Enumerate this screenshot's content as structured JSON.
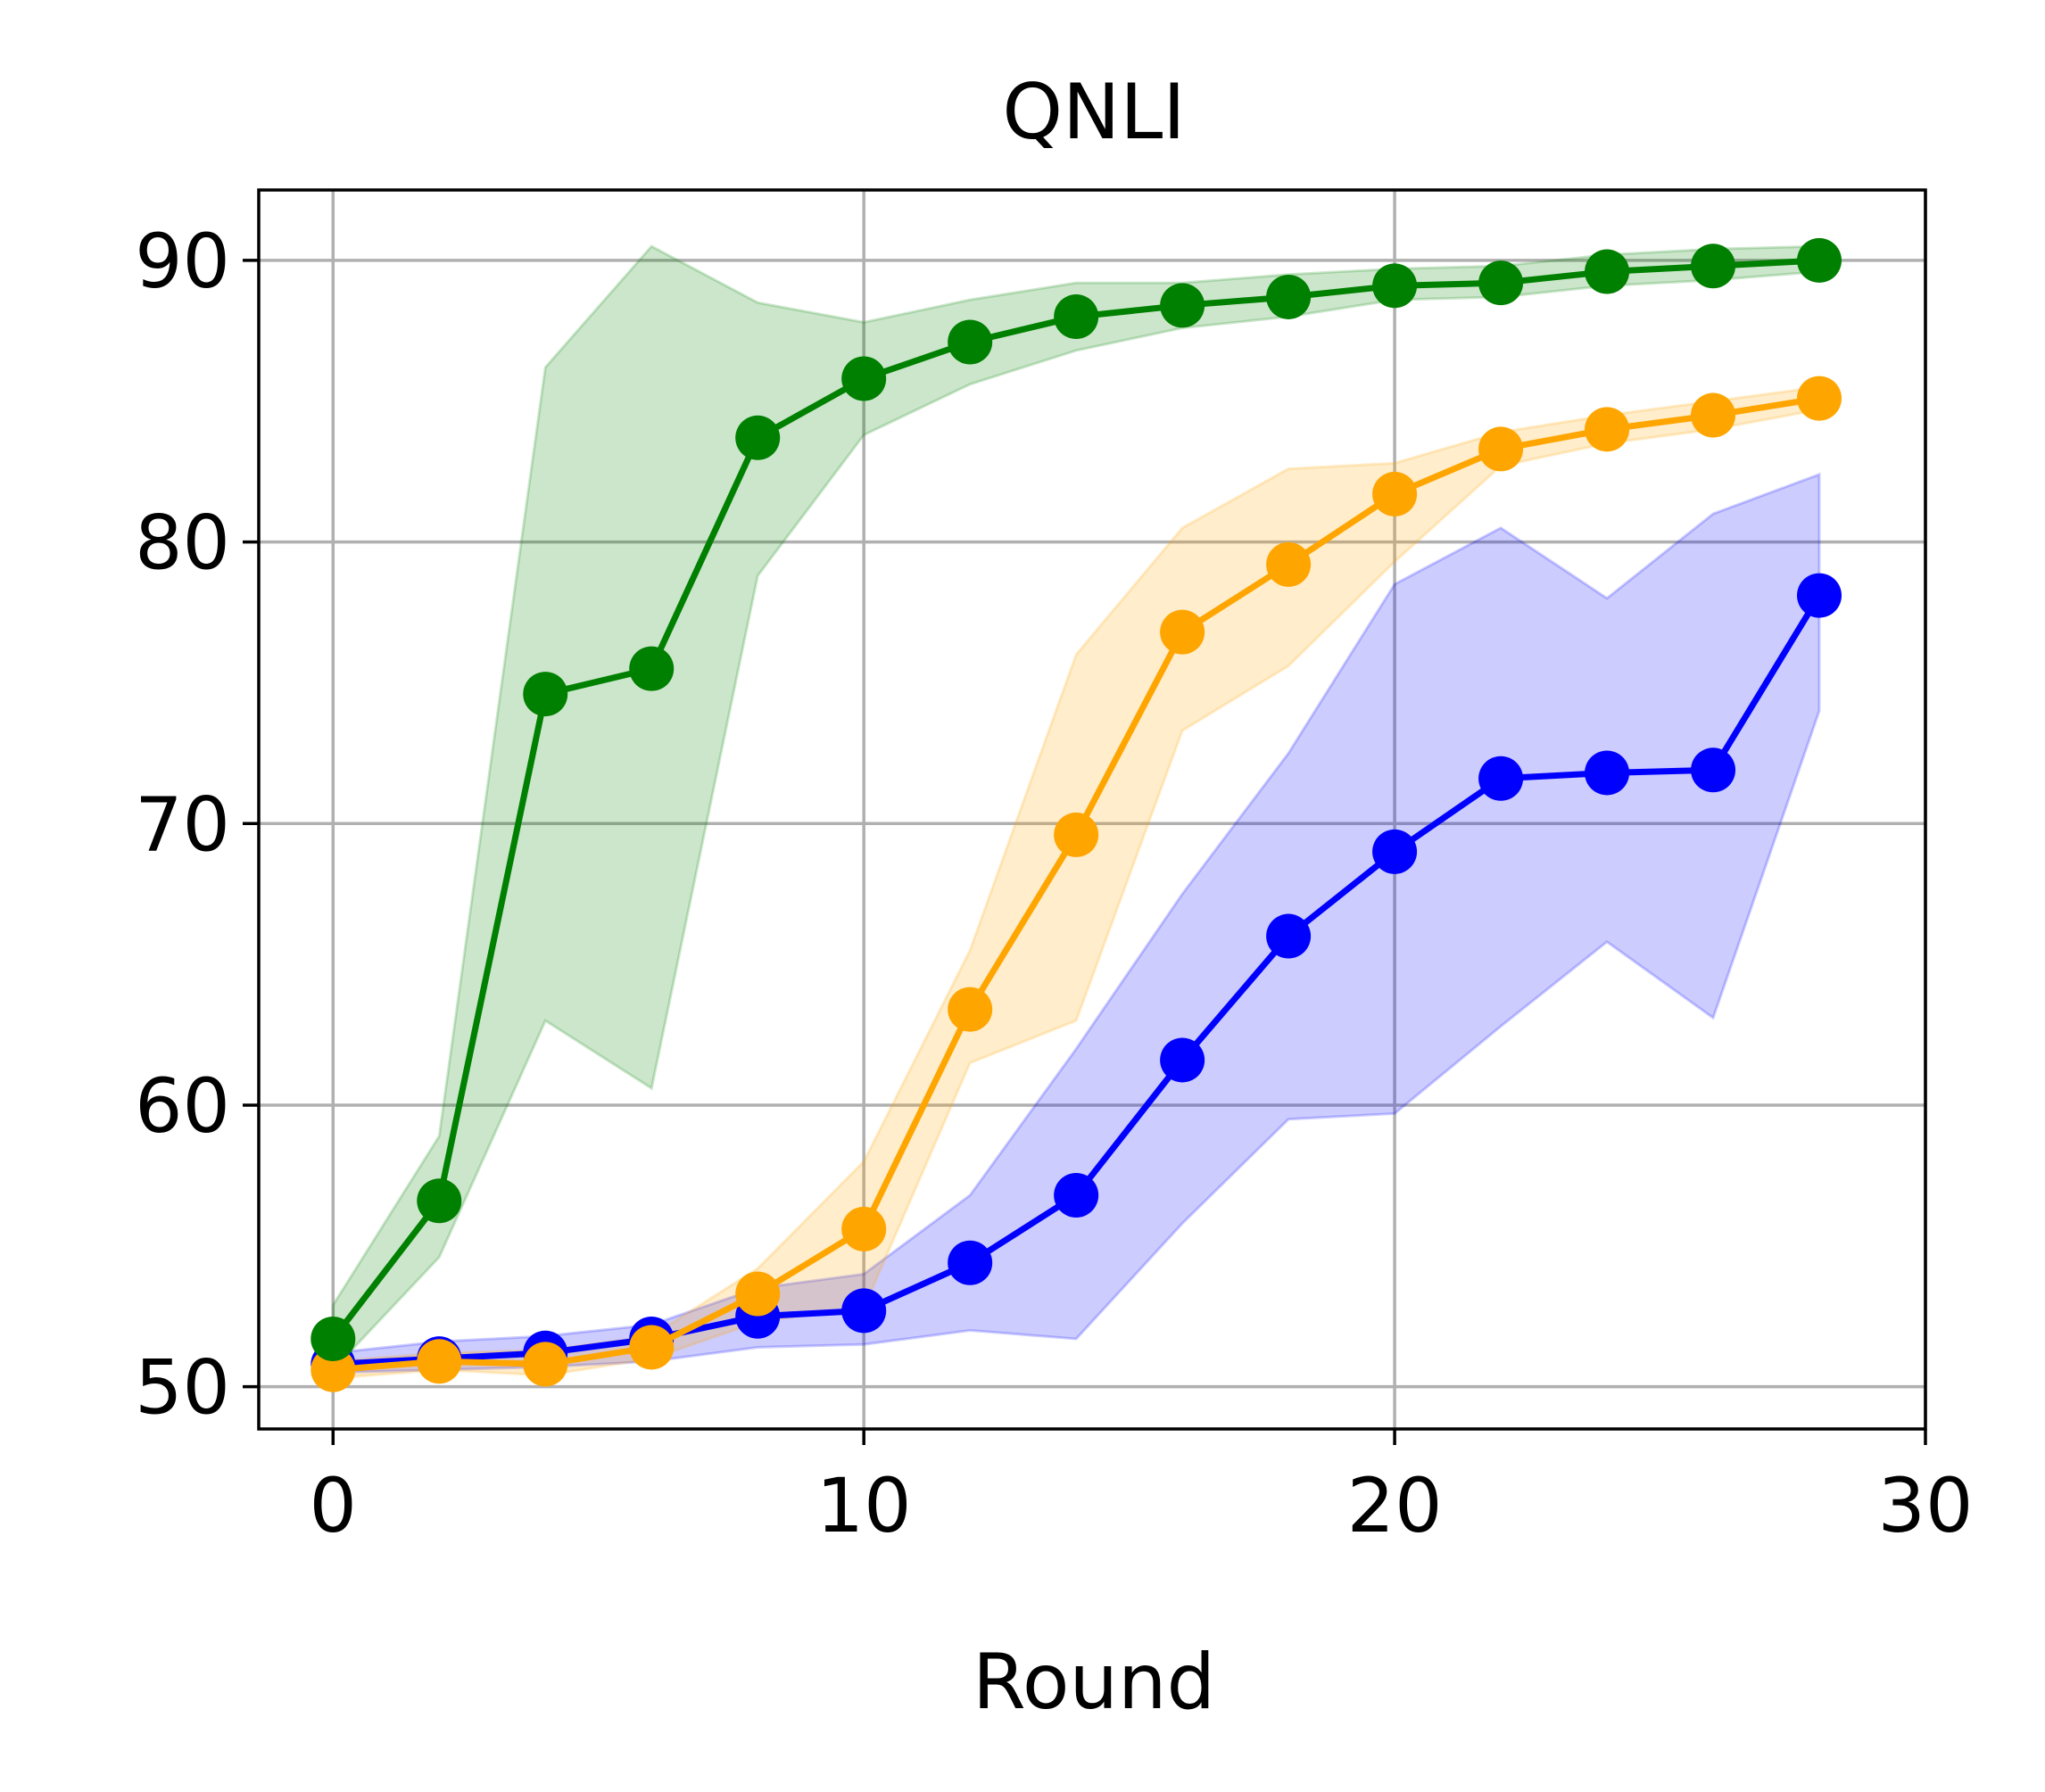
{
  "chart_data": {
    "type": "line",
    "title": "QNLI",
    "xlabel": "Round",
    "ylabel": "",
    "xlim": [
      -1.4,
      30
    ],
    "ylim": [
      48.5,
      92.5
    ],
    "xticks": [
      0,
      10,
      20,
      30
    ],
    "yticks": [
      50,
      60,
      70,
      80,
      90
    ],
    "grid": true,
    "x": [
      0,
      2,
      4,
      6,
      8,
      10,
      12,
      14,
      16,
      18,
      20,
      22,
      24,
      26,
      28
    ],
    "series": [
      {
        "color": "#0000ff",
        "values": [
          50.8,
          51.0,
          51.2,
          51.7,
          52.5,
          52.7,
          54.4,
          56.8,
          61.6,
          66.0,
          69.0,
          71.6,
          71.8,
          71.9,
          78.1
        ],
        "upper": [
          51.2,
          51.6,
          51.8,
          52.2,
          53.5,
          54.0,
          56.8,
          62.0,
          67.5,
          72.5,
          78.5,
          80.5,
          78.0,
          81.0,
          82.4
        ],
        "lower": [
          50.5,
          50.6,
          50.7,
          50.9,
          51.4,
          51.5,
          52.0,
          51.7,
          55.8,
          59.5,
          59.7,
          62.8,
          65.8,
          63.1,
          74.0
        ]
      },
      {
        "color": "#ffa500",
        "values": [
          50.6,
          50.9,
          50.8,
          51.4,
          53.3,
          55.6,
          63.4,
          69.6,
          76.8,
          79.2,
          81.7,
          83.3,
          84.0,
          84.5,
          85.1
        ],
        "upper": [
          50.9,
          51.2,
          51.3,
          51.8,
          54.2,
          58.0,
          65.5,
          76.0,
          80.5,
          82.6,
          82.8,
          83.9,
          84.5,
          85.0,
          85.5
        ],
        "lower": [
          50.3,
          50.6,
          50.4,
          51.0,
          52.3,
          52.8,
          61.5,
          63.0,
          73.3,
          75.6,
          79.3,
          82.7,
          83.5,
          84.0,
          84.7
        ]
      },
      {
        "color": "#008000",
        "values": [
          51.7,
          56.6,
          74.6,
          75.5,
          83.7,
          85.8,
          87.1,
          88.0,
          88.4,
          88.7,
          89.1,
          89.2,
          89.6,
          89.8,
          90.0
        ],
        "upper": [
          52.9,
          58.9,
          86.2,
          90.5,
          88.5,
          87.8,
          88.6,
          89.2,
          89.2,
          89.5,
          89.7,
          89.8,
          90.2,
          90.4,
          90.5
        ],
        "lower": [
          50.6,
          54.6,
          63.0,
          60.6,
          78.8,
          83.8,
          85.6,
          86.8,
          87.6,
          88.0,
          88.6,
          88.7,
          89.1,
          89.3,
          89.6
        ]
      }
    ]
  }
}
